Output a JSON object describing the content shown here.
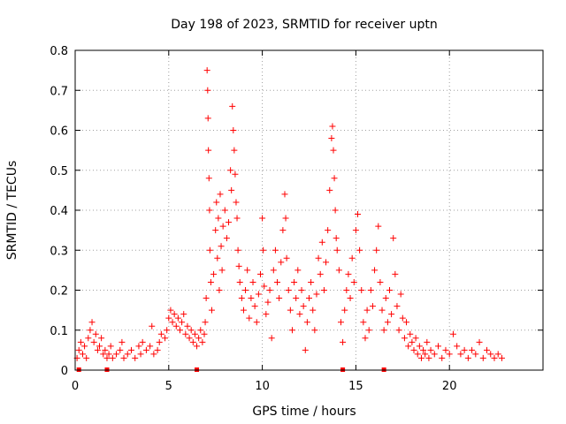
{
  "chart_data": {
    "type": "scatter",
    "title": "Day 198 of 2023, SRMTID for receiver uptn",
    "xlabel": "GPS time / hours",
    "ylabel": "SRMTID / TECUs",
    "xlim": [
      0,
      25
    ],
    "ylim": [
      0,
      0.8
    ],
    "grid": true,
    "marker": "+",
    "series_color": "#ff0000",
    "x_ticks": [
      0,
      5,
      10,
      15,
      20
    ],
    "y_ticks": [
      0,
      0.1,
      0.2,
      0.3,
      0.4,
      0.5,
      0.6,
      0.7,
      0.8
    ],
    "y_tick_labels": [
      "0",
      "0.1",
      "0.2",
      "0.3",
      "0.4",
      "0.5",
      "0.6",
      "0.7",
      "0.8"
    ],
    "series": [
      {
        "name": "SRMTID",
        "points": [
          [
            0.1,
            0.03
          ],
          [
            0.2,
            0.05
          ],
          [
            0.3,
            0.07
          ],
          [
            0.4,
            0.04
          ],
          [
            0.5,
            0.06
          ],
          [
            0.6,
            0.03
          ],
          [
            0.7,
            0.08
          ],
          [
            0.8,
            0.1
          ],
          [
            0.9,
            0.12
          ],
          [
            1.0,
            0.07
          ],
          [
            1.1,
            0.09
          ],
          [
            1.2,
            0.05
          ],
          [
            1.3,
            0.06
          ],
          [
            1.4,
            0.08
          ],
          [
            1.5,
            0.04
          ],
          [
            1.6,
            0.05
          ],
          [
            1.7,
            0.03
          ],
          [
            1.8,
            0.04
          ],
          [
            1.9,
            0.06
          ],
          [
            2.0,
            0.03
          ],
          [
            2.2,
            0.04
          ],
          [
            2.4,
            0.05
          ],
          [
            2.5,
            0.07
          ],
          [
            2.6,
            0.03
          ],
          [
            2.8,
            0.04
          ],
          [
            3.0,
            0.05
          ],
          [
            3.2,
            0.03
          ],
          [
            3.4,
            0.06
          ],
          [
            3.5,
            0.04
          ],
          [
            3.6,
            0.07
          ],
          [
            3.8,
            0.05
          ],
          [
            4.0,
            0.06
          ],
          [
            4.1,
            0.11
          ],
          [
            4.2,
            0.04
          ],
          [
            4.4,
            0.05
          ],
          [
            4.5,
            0.07
          ],
          [
            4.6,
            0.09
          ],
          [
            4.8,
            0.08
          ],
          [
            4.9,
            0.1
          ],
          [
            5.0,
            0.13
          ],
          [
            5.1,
            0.15
          ],
          [
            5.2,
            0.12
          ],
          [
            5.3,
            0.14
          ],
          [
            5.4,
            0.11
          ],
          [
            5.5,
            0.13
          ],
          [
            5.6,
            0.1
          ],
          [
            5.7,
            0.12
          ],
          [
            5.8,
            0.14
          ],
          [
            5.9,
            0.09
          ],
          [
            6.0,
            0.11
          ],
          [
            6.1,
            0.08
          ],
          [
            6.2,
            0.1
          ],
          [
            6.3,
            0.07
          ],
          [
            6.4,
            0.09
          ],
          [
            6.5,
            0.06
          ],
          [
            6.6,
            0.08
          ],
          [
            6.7,
            0.1
          ],
          [
            6.8,
            0.07
          ],
          [
            6.9,
            0.09
          ],
          [
            6.95,
            0.12
          ],
          [
            7.0,
            0.18
          ],
          [
            7.05,
            0.75
          ],
          [
            7.08,
            0.7
          ],
          [
            7.1,
            0.63
          ],
          [
            7.12,
            0.55
          ],
          [
            7.15,
            0.48
          ],
          [
            7.18,
            0.4
          ],
          [
            7.2,
            0.3
          ],
          [
            7.25,
            0.22
          ],
          [
            7.3,
            0.15
          ],
          [
            7.4,
            0.24
          ],
          [
            7.5,
            0.35
          ],
          [
            7.55,
            0.42
          ],
          [
            7.6,
            0.28
          ],
          [
            7.65,
            0.38
          ],
          [
            7.7,
            0.2
          ],
          [
            7.75,
            0.44
          ],
          [
            7.8,
            0.31
          ],
          [
            7.85,
            0.25
          ],
          [
            7.9,
            0.36
          ],
          [
            8.0,
            0.4
          ],
          [
            8.1,
            0.33
          ],
          [
            8.2,
            0.37
          ],
          [
            8.3,
            0.5
          ],
          [
            8.35,
            0.45
          ],
          [
            8.4,
            0.66
          ],
          [
            8.45,
            0.6
          ],
          [
            8.5,
            0.55
          ],
          [
            8.55,
            0.49
          ],
          [
            8.6,
            0.42
          ],
          [
            8.65,
            0.38
          ],
          [
            8.7,
            0.3
          ],
          [
            8.75,
            0.26
          ],
          [
            8.8,
            0.22
          ],
          [
            8.9,
            0.18
          ],
          [
            9.0,
            0.15
          ],
          [
            9.1,
            0.2
          ],
          [
            9.2,
            0.25
          ],
          [
            9.3,
            0.13
          ],
          [
            9.4,
            0.18
          ],
          [
            9.5,
            0.22
          ],
          [
            9.6,
            0.16
          ],
          [
            9.7,
            0.12
          ],
          [
            9.8,
            0.19
          ],
          [
            9.9,
            0.24
          ],
          [
            10.0,
            0.38
          ],
          [
            10.05,
            0.3
          ],
          [
            10.1,
            0.21
          ],
          [
            10.2,
            0.14
          ],
          [
            10.3,
            0.17
          ],
          [
            10.4,
            0.2
          ],
          [
            10.5,
            0.08
          ],
          [
            10.6,
            0.25
          ],
          [
            10.7,
            0.3
          ],
          [
            10.8,
            0.22
          ],
          [
            10.9,
            0.18
          ],
          [
            11.0,
            0.27
          ],
          [
            11.1,
            0.35
          ],
          [
            11.2,
            0.44
          ],
          [
            11.25,
            0.38
          ],
          [
            11.3,
            0.28
          ],
          [
            11.4,
            0.2
          ],
          [
            11.5,
            0.15
          ],
          [
            11.6,
            0.1
          ],
          [
            11.7,
            0.22
          ],
          [
            11.8,
            0.18
          ],
          [
            11.9,
            0.25
          ],
          [
            12.0,
            0.14
          ],
          [
            12.1,
            0.2
          ],
          [
            12.2,
            0.16
          ],
          [
            12.3,
            0.05
          ],
          [
            12.4,
            0.12
          ],
          [
            12.5,
            0.18
          ],
          [
            12.6,
            0.22
          ],
          [
            12.7,
            0.15
          ],
          [
            12.8,
            0.1
          ],
          [
            12.9,
            0.19
          ],
          [
            13.0,
            0.28
          ],
          [
            13.1,
            0.24
          ],
          [
            13.2,
            0.32
          ],
          [
            13.3,
            0.2
          ],
          [
            13.4,
            0.27
          ],
          [
            13.5,
            0.35
          ],
          [
            13.6,
            0.45
          ],
          [
            13.7,
            0.58
          ],
          [
            13.75,
            0.61
          ],
          [
            13.8,
            0.55
          ],
          [
            13.85,
            0.48
          ],
          [
            13.9,
            0.4
          ],
          [
            13.95,
            0.33
          ],
          [
            14.0,
            0.3
          ],
          [
            14.1,
            0.25
          ],
          [
            14.2,
            0.12
          ],
          [
            14.3,
            0.07
          ],
          [
            14.4,
            0.15
          ],
          [
            14.5,
            0.2
          ],
          [
            14.6,
            0.24
          ],
          [
            14.7,
            0.18
          ],
          [
            14.8,
            0.28
          ],
          [
            14.9,
            0.22
          ],
          [
            15.0,
            0.35
          ],
          [
            15.1,
            0.39
          ],
          [
            15.2,
            0.3
          ],
          [
            15.3,
            0.2
          ],
          [
            15.4,
            0.12
          ],
          [
            15.5,
            0.08
          ],
          [
            15.6,
            0.15
          ],
          [
            15.7,
            0.1
          ],
          [
            15.8,
            0.2
          ],
          [
            15.9,
            0.16
          ],
          [
            16.0,
            0.25
          ],
          [
            16.1,
            0.3
          ],
          [
            16.2,
            0.36
          ],
          [
            16.3,
            0.22
          ],
          [
            16.4,
            0.15
          ],
          [
            16.5,
            0.1
          ],
          [
            16.6,
            0.18
          ],
          [
            16.7,
            0.12
          ],
          [
            16.8,
            0.2
          ],
          [
            16.9,
            0.14
          ],
          [
            17.0,
            0.33
          ],
          [
            17.1,
            0.24
          ],
          [
            17.2,
            0.16
          ],
          [
            17.3,
            0.1
          ],
          [
            17.4,
            0.19
          ],
          [
            17.5,
            0.13
          ],
          [
            17.6,
            0.08
          ],
          [
            17.7,
            0.12
          ],
          [
            17.8,
            0.06
          ],
          [
            17.9,
            0.09
          ],
          [
            18.0,
            0.07
          ],
          [
            18.1,
            0.05
          ],
          [
            18.2,
            0.08
          ],
          [
            18.3,
            0.04
          ],
          [
            18.4,
            0.06
          ],
          [
            18.5,
            0.03
          ],
          [
            18.6,
            0.05
          ],
          [
            18.7,
            0.04
          ],
          [
            18.8,
            0.07
          ],
          [
            18.9,
            0.03
          ],
          [
            19.0,
            0.05
          ],
          [
            19.2,
            0.04
          ],
          [
            19.4,
            0.06
          ],
          [
            19.6,
            0.03
          ],
          [
            19.8,
            0.05
          ],
          [
            20.0,
            0.04
          ],
          [
            20.2,
            0.09
          ],
          [
            20.4,
            0.06
          ],
          [
            20.6,
            0.04
          ],
          [
            20.8,
            0.05
          ],
          [
            21.0,
            0.03
          ],
          [
            21.2,
            0.05
          ],
          [
            21.4,
            0.04
          ],
          [
            21.6,
            0.07
          ],
          [
            21.8,
            0.03
          ],
          [
            22.0,
            0.05
          ],
          [
            22.2,
            0.04
          ],
          [
            22.4,
            0.03
          ],
          [
            22.6,
            0.04
          ],
          [
            22.8,
            0.03
          ]
        ]
      }
    ],
    "baseline_markers": [
      0.2,
      1.7,
      6.5,
      14.3,
      16.5
    ]
  }
}
